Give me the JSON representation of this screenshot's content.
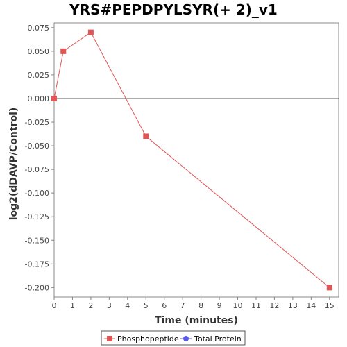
{
  "chart_data": {
    "type": "line",
    "title": "YRS#PEPDPYLSYR(+ 2)_v1",
    "xlabel": "Time (minutes)",
    "ylabel": "log2(dDAVP/Control)",
    "xlim": [
      0,
      15.5
    ],
    "ylim": [
      -0.21,
      0.08
    ],
    "xticks": [
      0,
      1,
      2,
      3,
      4,
      5,
      6,
      7,
      8,
      9,
      10,
      11,
      12,
      13,
      14,
      15
    ],
    "yticks": [
      0.075,
      0.05,
      0.025,
      0.0,
      -0.025,
      -0.05,
      -0.075,
      -0.1,
      -0.125,
      -0.15,
      -0.175,
      -0.2
    ],
    "ytick_labels": [
      "0.075",
      "0.050",
      "0.025",
      "0.000",
      "-0.025",
      "-0.050",
      "-0.075",
      "-0.100",
      "-0.125",
      "-0.150",
      "-0.175",
      "-0.200"
    ],
    "zero_line": true,
    "grid": false,
    "legend_position": "bottom",
    "series": [
      {
        "name": "Phosphopeptide",
        "color": "#e05555",
        "marker": "square",
        "x": [
          0,
          0.5,
          2,
          5,
          15
        ],
        "y": [
          0.0,
          0.05,
          0.07,
          -0.04,
          -0.2
        ]
      },
      {
        "name": "Total Protein",
        "color": "#5a5ae6",
        "marker": "circle",
        "x": [],
        "y": []
      }
    ]
  }
}
